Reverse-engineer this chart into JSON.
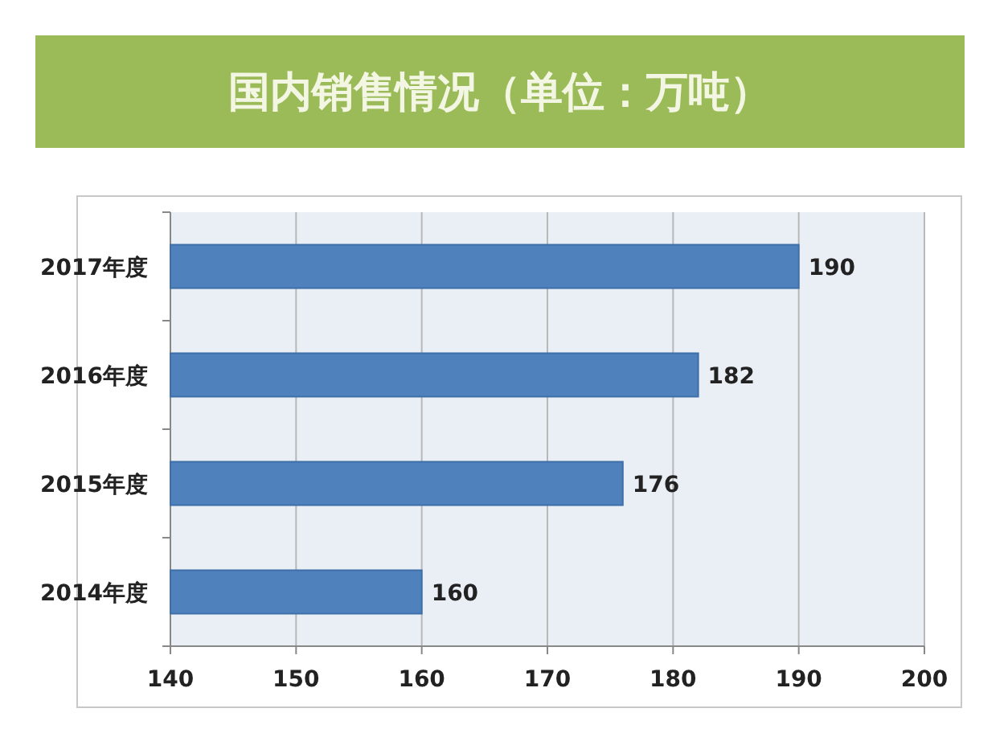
{
  "chart_data": {
    "type": "bar",
    "orientation": "horizontal",
    "title": "国内销售情况（单位：万吨）",
    "categories": [
      "2017年度",
      "2016年度",
      "2015年度",
      "2014年度"
    ],
    "values": [
      190,
      182,
      176,
      160
    ],
    "color": "#4f81bd",
    "xlim": [
      140,
      200
    ],
    "xticks": [
      140,
      150,
      160,
      170,
      180,
      190,
      200
    ],
    "grid": "x",
    "data_labels": true
  }
}
